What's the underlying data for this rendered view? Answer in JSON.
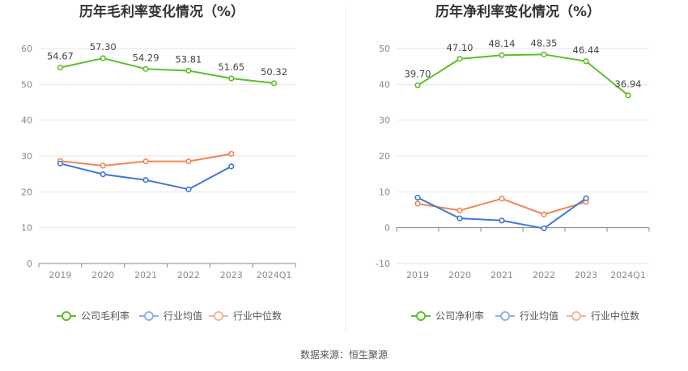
{
  "colors": {
    "company": "#5cbf2a",
    "industry_avg": "#3f77d6",
    "industry_median": "#ee8755",
    "legend_avg": "#8fb1ef",
    "legend_median": "#f3b59b"
  },
  "footer": {
    "source": "数据来源：恒生聚源"
  },
  "chart_data": [
    {
      "type": "line",
      "title": "历年毛利率变化情况（%）",
      "categories": [
        "2019",
        "2020",
        "2021",
        "2022",
        "2023",
        "2024Q1"
      ],
      "ylim": [
        0,
        60
      ],
      "yticks": [
        0,
        10,
        20,
        30,
        40,
        50,
        60
      ],
      "grid": true,
      "legend_position": "bottom",
      "series": [
        {
          "name": "公司毛利率",
          "color": "#5cbf2a",
          "labeled": true,
          "values": [
            54.67,
            57.3,
            54.29,
            53.81,
            51.65,
            50.32
          ],
          "labels": [
            "54.67",
            "57.30",
            "54.29",
            "53.81",
            "51.65",
            "50.32"
          ]
        },
        {
          "name": "行业均值",
          "color": "#3f77d6",
          "labeled": false,
          "values": [
            27.9,
            24.9,
            23.3,
            20.7,
            27.1,
            null
          ]
        },
        {
          "name": "行业中位数",
          "color": "#ee8755",
          "labeled": false,
          "values": [
            28.6,
            27.3,
            28.5,
            28.5,
            30.6,
            null
          ]
        }
      ]
    },
    {
      "type": "line",
      "title": "历年净利率变化情况（%）",
      "categories": [
        "2019",
        "2020",
        "2021",
        "2022",
        "2023",
        "2024Q1"
      ],
      "ylim": [
        -10,
        50
      ],
      "yticks": [
        -10,
        0,
        10,
        20,
        30,
        40,
        50
      ],
      "grid": true,
      "legend_position": "bottom",
      "series": [
        {
          "name": "公司净利率",
          "color": "#5cbf2a",
          "labeled": true,
          "values": [
            39.7,
            47.1,
            48.14,
            48.35,
            46.44,
            36.94
          ],
          "labels": [
            "39.70",
            "47.10",
            "48.14",
            "48.35",
            "46.44",
            "36.94"
          ]
        },
        {
          "name": "行业均值",
          "color": "#3f77d6",
          "labeled": false,
          "values": [
            8.4,
            2.6,
            2.0,
            -0.2,
            8.2,
            null
          ]
        },
        {
          "name": "行业中位数",
          "color": "#ee8755",
          "labeled": false,
          "values": [
            6.7,
            4.8,
            8.1,
            3.7,
            7.2,
            null
          ]
        }
      ]
    }
  ]
}
